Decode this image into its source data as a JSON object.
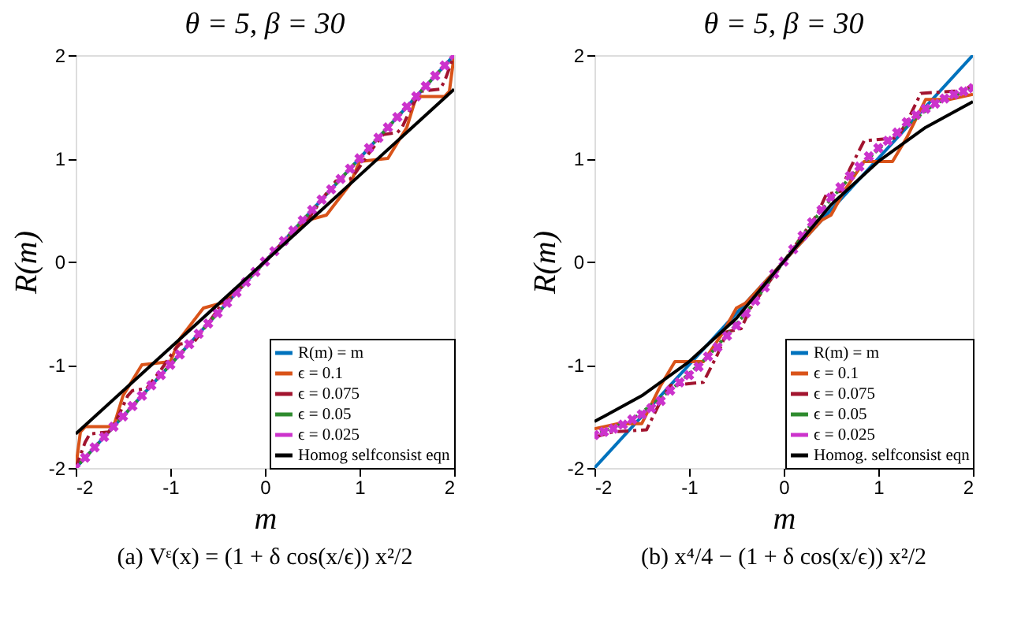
{
  "chart_data": [
    {
      "type": "line",
      "title": "θ = 5, β = 30",
      "xlabel": "m",
      "ylabel": "R(m)",
      "xlim": [
        -2,
        2
      ],
      "ylim": [
        -2,
        2
      ],
      "xticks": [
        -2,
        -1,
        0,
        1,
        2
      ],
      "yticks": [
        -2,
        -1,
        0,
        1,
        2
      ],
      "grid": false,
      "legend": "bottom right",
      "annotations": [
        "(a) Vᵋ(x) = (1 + δ cos(x/ϵ)) x²/2"
      ],
      "series": [
        {
          "name": "R(m) = m",
          "color": "#0072bd",
          "line_style": "solid",
          "x": [
            -2,
            2
          ],
          "values": [
            -2,
            2
          ]
        },
        {
          "name": "ϵ = 0.1",
          "color": "#d95319",
          "line_style": "solid",
          "x": [
            -2,
            -1.95,
            -1.9,
            -1.6,
            -1.5,
            -1.3,
            -1.0,
            -0.9,
            -0.65,
            -0.45,
            -0.3,
            0,
            0.3,
            0.45,
            0.65,
            0.9,
            1.0,
            1.3,
            1.5,
            1.6,
            1.9,
            1.95,
            2
          ],
          "values": [
            -2,
            -1.65,
            -1.6,
            -1.6,
            -1.3,
            -1.0,
            -0.97,
            -0.75,
            -0.45,
            -0.4,
            -0.27,
            0,
            0.27,
            0.4,
            0.45,
            0.75,
            0.97,
            1.0,
            1.3,
            1.6,
            1.6,
            1.65,
            2
          ]
        },
        {
          "name": "ϵ = 0.075",
          "color": "#a2142f",
          "line_style": "dashed",
          "x": [
            -2,
            -1.9,
            -1.85,
            -1.65,
            -1.55,
            -1.45,
            -1.4,
            -1.25,
            -1.1,
            -0.95,
            -0.9,
            -0.75,
            -0.6,
            -0.45,
            -0.35,
            0,
            0.35,
            0.45,
            0.6,
            0.75,
            0.9,
            0.95,
            1.1,
            1.25,
            1.4,
            1.45,
            1.55,
            1.65,
            1.85,
            1.9,
            2
          ],
          "values": [
            -2,
            -1.75,
            -1.67,
            -1.65,
            -1.5,
            -1.3,
            -1.25,
            -1.23,
            -1.05,
            -0.85,
            -0.8,
            -0.78,
            -0.6,
            -0.4,
            -0.35,
            0,
            0.35,
            0.4,
            0.6,
            0.78,
            0.8,
            0.85,
            1.05,
            1.23,
            1.25,
            1.3,
            1.5,
            1.65,
            1.67,
            1.75,
            2
          ]
        },
        {
          "name": "ϵ = 0.05",
          "color": "#2e8b2e",
          "line_style": "dotted",
          "x": [
            -2,
            -1,
            0,
            1,
            2
          ],
          "values": [
            -2,
            -1,
            0,
            1,
            2
          ]
        },
        {
          "name": "ϵ = 0.025",
          "color": "#cc33cc",
          "type": "scatter",
          "marker": "cross",
          "x": [
            -2,
            -1.9,
            -1.8,
            -1.7,
            -1.6,
            -1.5,
            -1.4,
            -1.3,
            -1.2,
            -1.1,
            -1,
            -0.9,
            -0.8,
            -0.7,
            -0.6,
            -0.5,
            -0.4,
            -0.3,
            -0.2,
            -0.1,
            0,
            0.1,
            0.2,
            0.3,
            0.4,
            0.5,
            0.6,
            0.7,
            0.8,
            0.9,
            1,
            1.1,
            1.2,
            1.3,
            1.4,
            1.5,
            1.6,
            1.7,
            1.8,
            1.9,
            2
          ],
          "values": [
            -2,
            -1.9,
            -1.8,
            -1.7,
            -1.6,
            -1.5,
            -1.4,
            -1.3,
            -1.2,
            -1.1,
            -1,
            -0.9,
            -0.8,
            -0.7,
            -0.6,
            -0.5,
            -0.4,
            -0.3,
            -0.2,
            -0.1,
            0,
            0.1,
            0.2,
            0.3,
            0.4,
            0.5,
            0.6,
            0.7,
            0.8,
            0.9,
            1,
            1.1,
            1.2,
            1.3,
            1.4,
            1.5,
            1.6,
            1.7,
            1.8,
            1.9,
            2
          ]
        },
        {
          "name": "Homog selfconsist eqn",
          "color": "#000000",
          "line_style": "solid",
          "x": [
            -2,
            2
          ],
          "values": [
            -1.67,
            1.67
          ]
        }
      ]
    },
    {
      "type": "line",
      "title": "θ = 5, β = 30",
      "xlabel": "m",
      "ylabel": "R(m)",
      "xlim": [
        -2,
        2
      ],
      "ylim": [
        -2,
        2
      ],
      "xticks": [
        -2,
        -1,
        0,
        1,
        2
      ],
      "yticks": [
        -2,
        -1,
        0,
        1,
        2
      ],
      "grid": false,
      "legend": "bottom right",
      "annotations": [
        "(b) x⁴/4 − (1 + δ cos(x/ϵ)) x²/2"
      ],
      "series": [
        {
          "name": "R(m) = m",
          "color": "#0072bd",
          "line_style": "solid",
          "x": [
            -2,
            2
          ],
          "values": [
            -2,
            2
          ]
        },
        {
          "name": "ϵ = 0.1",
          "color": "#d95319",
          "line_style": "solid",
          "x": [
            -2,
            -1.75,
            -1.5,
            -1.3,
            -1.15,
            -0.85,
            -0.65,
            -0.5,
            -0.4,
            -0.2,
            0,
            0.2,
            0.4,
            0.5,
            0.65,
            0.85,
            1.15,
            1.3,
            1.5,
            1.75,
            2
          ],
          "values": [
            -1.62,
            -1.57,
            -1.57,
            -1.2,
            -0.97,
            -0.97,
            -0.7,
            -0.45,
            -0.4,
            -0.2,
            0,
            0.2,
            0.4,
            0.45,
            0.7,
            0.97,
            0.97,
            1.2,
            1.57,
            1.57,
            1.62
          ]
        },
        {
          "name": "ϵ = 0.075",
          "color": "#a2142f",
          "line_style": "dashed",
          "x": [
            -2,
            -1.8,
            -1.45,
            -1.3,
            -1.2,
            -0.85,
            -0.7,
            -0.6,
            -0.45,
            -0.35,
            0,
            0.35,
            0.45,
            0.6,
            0.7,
            0.85,
            1.2,
            1.3,
            1.45,
            1.8,
            2
          ],
          "values": [
            -1.7,
            -1.65,
            -1.63,
            -1.35,
            -1.2,
            -1.17,
            -0.9,
            -0.68,
            -0.65,
            -0.45,
            0,
            0.45,
            0.65,
            0.68,
            0.9,
            1.17,
            1.2,
            1.35,
            1.63,
            1.65,
            1.7
          ]
        },
        {
          "name": "ϵ = 0.05",
          "color": "#2e8b2e",
          "line_style": "dotted",
          "x": [
            -2,
            -1.6,
            -1.2,
            -0.8,
            -0.4,
            0,
            0.4,
            0.8,
            1.2,
            1.6,
            2
          ],
          "values": [
            -1.68,
            -1.53,
            -1.25,
            -0.92,
            -0.5,
            0,
            0.5,
            0.92,
            1.25,
            1.53,
            1.68
          ]
        },
        {
          "name": "ϵ = 0.025",
          "color": "#cc33cc",
          "type": "scatter",
          "marker": "cross",
          "x": [
            -2,
            -1.9,
            -1.8,
            -1.7,
            -1.6,
            -1.5,
            -1.4,
            -1.3,
            -1.2,
            -1.1,
            -1,
            -0.9,
            -0.8,
            -0.7,
            -0.6,
            -0.5,
            -0.4,
            -0.3,
            -0.2,
            -0.1,
            0,
            0.1,
            0.2,
            0.3,
            0.4,
            0.5,
            0.6,
            0.7,
            0.8,
            0.9,
            1,
            1.1,
            1.2,
            1.3,
            1.4,
            1.5,
            1.6,
            1.7,
            1.8,
            1.9,
            2
          ],
          "values": [
            -1.68,
            -1.65,
            -1.62,
            -1.58,
            -1.53,
            -1.48,
            -1.42,
            -1.35,
            -1.25,
            -1.17,
            -1.1,
            -1.02,
            -0.92,
            -0.83,
            -0.72,
            -0.62,
            -0.5,
            -0.38,
            -0.25,
            -0.12,
            0,
            0.12,
            0.25,
            0.38,
            0.5,
            0.62,
            0.72,
            0.83,
            0.92,
            1.02,
            1.1,
            1.17,
            1.25,
            1.35,
            1.42,
            1.48,
            1.53,
            1.58,
            1.62,
            1.65,
            1.68
          ]
        },
        {
          "name": "Homog. selfconsist eqn",
          "color": "#000000",
          "line_style": "solid",
          "x": [
            -2,
            -1.5,
            -1,
            -0.5,
            0,
            0.5,
            1,
            1.5,
            2
          ],
          "values": [
            -1.55,
            -1.3,
            -0.97,
            -0.55,
            0,
            0.55,
            0.97,
            1.3,
            1.55
          ]
        }
      ]
    }
  ]
}
